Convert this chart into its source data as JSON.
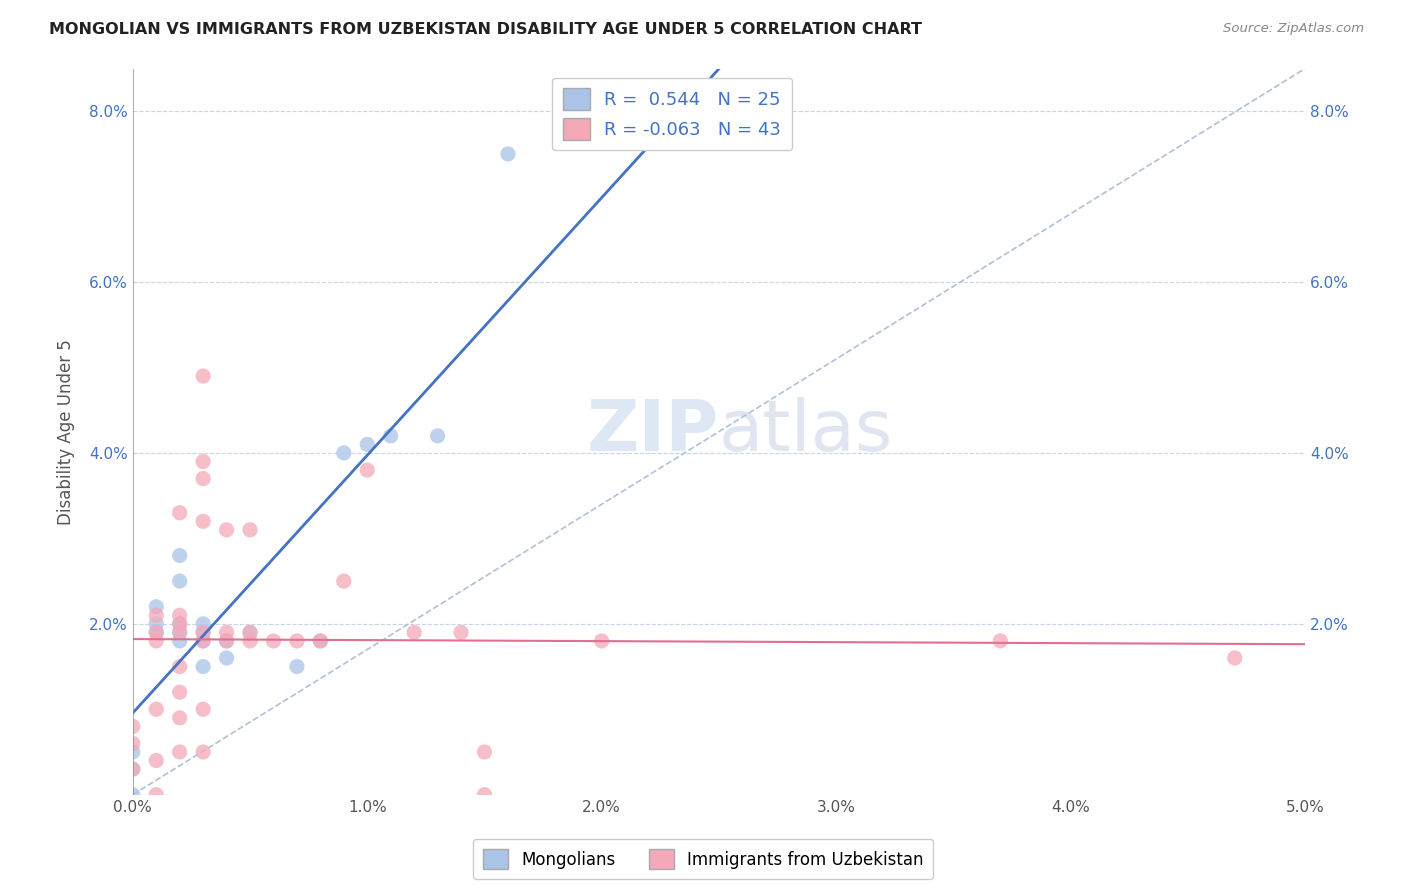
{
  "title": "MONGOLIAN VS IMMIGRANTS FROM UZBEKISTAN DISABILITY AGE UNDER 5 CORRELATION CHART",
  "source": "Source: ZipAtlas.com",
  "ylabel": "Disability Age Under 5",
  "xlim": [
    0.0,
    0.05
  ],
  "ylim": [
    0.0,
    0.085
  ],
  "xticks": [
    0.0,
    0.01,
    0.02,
    0.03,
    0.04,
    0.05
  ],
  "yticks": [
    0.0,
    0.02,
    0.04,
    0.06,
    0.08
  ],
  "xtick_labels": [
    "0.0%",
    "1.0%",
    "2.0%",
    "3.0%",
    "4.0%",
    "5.0%"
  ],
  "ytick_labels_left": [
    "",
    "2.0%",
    "4.0%",
    "6.0%",
    "8.0%"
  ],
  "ytick_labels_right": [
    "",
    "2.0%",
    "4.0%",
    "6.0%",
    "8.0%"
  ],
  "mongolian_color": "#aac4e8",
  "uzbekistan_color": "#f4a8b8",
  "mongolian_R": 0.544,
  "mongolian_N": 25,
  "uzbekistan_R": -0.063,
  "uzbekistan_N": 43,
  "legend_labels": [
    "Mongolians",
    "Immigrants from Uzbekistan"
  ],
  "mongolian_scatter": [
    [
      0.0,
      0.0
    ],
    [
      0.0,
      0.003
    ],
    [
      0.0,
      0.005
    ],
    [
      0.001,
      0.019
    ],
    [
      0.001,
      0.02
    ],
    [
      0.001,
      0.022
    ],
    [
      0.002,
      0.018
    ],
    [
      0.002,
      0.019
    ],
    [
      0.002,
      0.02
    ],
    [
      0.002,
      0.025
    ],
    [
      0.002,
      0.028
    ],
    [
      0.003,
      0.015
    ],
    [
      0.003,
      0.018
    ],
    [
      0.003,
      0.019
    ],
    [
      0.003,
      0.02
    ],
    [
      0.004,
      0.018
    ],
    [
      0.004,
      0.016
    ],
    [
      0.005,
      0.019
    ],
    [
      0.007,
      0.015
    ],
    [
      0.008,
      0.018
    ],
    [
      0.009,
      0.04
    ],
    [
      0.01,
      0.041
    ],
    [
      0.011,
      0.042
    ],
    [
      0.013,
      0.042
    ],
    [
      0.016,
      0.075
    ]
  ],
  "uzbekistan_scatter": [
    [
      0.0,
      0.003
    ],
    [
      0.0,
      0.006
    ],
    [
      0.0,
      0.008
    ],
    [
      0.001,
      0.0
    ],
    [
      0.001,
      0.004
    ],
    [
      0.001,
      0.01
    ],
    [
      0.001,
      0.018
    ],
    [
      0.001,
      0.019
    ],
    [
      0.001,
      0.021
    ],
    [
      0.002,
      0.005
    ],
    [
      0.002,
      0.009
    ],
    [
      0.002,
      0.012
    ],
    [
      0.002,
      0.015
    ],
    [
      0.002,
      0.019
    ],
    [
      0.002,
      0.02
    ],
    [
      0.002,
      0.021
    ],
    [
      0.002,
      0.033
    ],
    [
      0.003,
      0.005
    ],
    [
      0.003,
      0.01
    ],
    [
      0.003,
      0.018
    ],
    [
      0.003,
      0.019
    ],
    [
      0.003,
      0.032
    ],
    [
      0.003,
      0.037
    ],
    [
      0.003,
      0.039
    ],
    [
      0.003,
      0.049
    ],
    [
      0.004,
      0.018
    ],
    [
      0.004,
      0.019
    ],
    [
      0.004,
      0.031
    ],
    [
      0.005,
      0.018
    ],
    [
      0.005,
      0.019
    ],
    [
      0.005,
      0.031
    ],
    [
      0.006,
      0.018
    ],
    [
      0.007,
      0.018
    ],
    [
      0.008,
      0.018
    ],
    [
      0.009,
      0.025
    ],
    [
      0.01,
      0.038
    ],
    [
      0.012,
      0.019
    ],
    [
      0.014,
      0.019
    ],
    [
      0.015,
      0.0
    ],
    [
      0.015,
      0.005
    ],
    [
      0.02,
      0.018
    ],
    [
      0.037,
      0.018
    ],
    [
      0.047,
      0.016
    ]
  ],
  "background_color": "#ffffff",
  "watermark_zip": "ZIP",
  "watermark_atlas": "atlas",
  "diagonal_line_color": "#b0c0d8",
  "mongolian_line_color": "#4472c4",
  "uzbekistan_line_color": "#e07090"
}
